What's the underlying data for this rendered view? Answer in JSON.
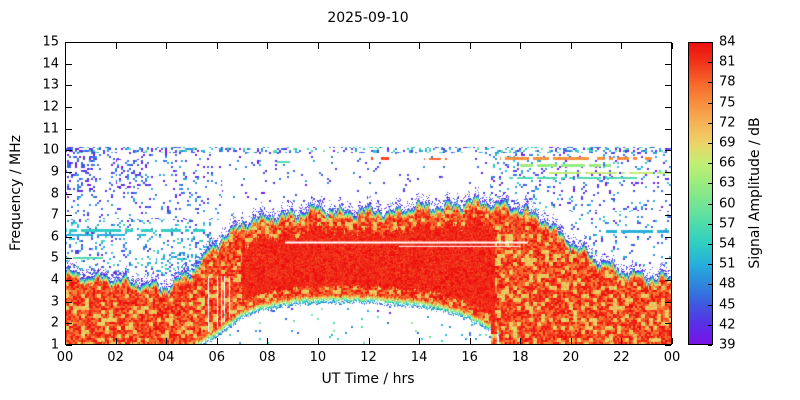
{
  "title": "2025-09-10",
  "axes": {
    "xlabel": "UT Time / hrs",
    "ylabel": "Frequency / MHz",
    "x_ticks": [
      "00",
      "02",
      "04",
      "06",
      "08",
      "10",
      "12",
      "14",
      "16",
      "18",
      "20",
      "22",
      "00"
    ],
    "y_ticks": [
      "1",
      "2",
      "3",
      "4",
      "5",
      "6",
      "7",
      "8",
      "9",
      "10",
      "11",
      "12",
      "13",
      "14",
      "15"
    ],
    "x_range": [
      0,
      24
    ],
    "y_range": [
      1,
      15
    ]
  },
  "colorbar": {
    "label": "Signal Amplitude / dB",
    "ticks": [
      39,
      42,
      45,
      48,
      51,
      54,
      57,
      60,
      63,
      66,
      69,
      72,
      75,
      78,
      81,
      84
    ],
    "min": 39,
    "max": 84
  },
  "chart_data": {
    "type": "heatmap",
    "title": "2025-09-10",
    "xlabel": "UT Time / hrs",
    "ylabel": "Frequency / MHz",
    "x_range": [
      0,
      24
    ],
    "y_range": [
      1,
      15
    ],
    "amplitude_range_db": [
      39,
      84
    ],
    "colorbar_label": "Signal Amplitude / dB",
    "colormap_stops": [
      {
        "db": 39,
        "color": "#7b12e6"
      },
      {
        "db": 42,
        "color": "#5a2fe8"
      },
      {
        "db": 45,
        "color": "#3f59e0"
      },
      {
        "db": 48,
        "color": "#2f87dd"
      },
      {
        "db": 51,
        "color": "#27b0dc"
      },
      {
        "db": 54,
        "color": "#2fcfc3"
      },
      {
        "db": 57,
        "color": "#4fdcae"
      },
      {
        "db": 60,
        "color": "#76e594"
      },
      {
        "db": 63,
        "color": "#9bec80"
      },
      {
        "db": 66,
        "color": "#c2f173"
      },
      {
        "db": 69,
        "color": "#eed468"
      },
      {
        "db": 72,
        "color": "#f6b355"
      },
      {
        "db": 75,
        "color": "#f78f3e"
      },
      {
        "db": 78,
        "color": "#f7662a"
      },
      {
        "db": 81,
        "color": "#f2341b"
      },
      {
        "db": 84,
        "color": "#ec0e0e"
      }
    ],
    "upper_edge_mhz_by_hour": [
      4.2,
      4.0,
      3.9,
      3.7,
      3.5,
      4.3,
      5.6,
      6.5,
      6.8,
      6.9,
      7.2,
      7.0,
      7.1,
      7.0,
      7.3,
      7.2,
      7.5,
      7.4,
      7.2,
      6.6,
      5.6,
      4.8,
      4.3,
      4.0,
      4.0
    ],
    "lower_edge_mhz_by_hour": [
      1,
      1,
      1,
      1,
      1,
      1,
      1.6,
      2.5,
      2.9,
      3.1,
      3.2,
      3.2,
      3.2,
      3.1,
      3.0,
      2.8,
      2.4,
      1.8,
      1.0,
      1,
      1,
      1,
      1,
      1,
      1
    ],
    "speckle_regions": [
      {
        "t0": 0.0,
        "t1": 1.2,
        "f0": 8.0,
        "f1": 10.15,
        "density": 0.22,
        "a0": 39,
        "a1": 48
      },
      {
        "t0": 2.0,
        "t1": 3.4,
        "f0": 8.2,
        "f1": 9.6,
        "density": 0.18,
        "a0": 39,
        "a1": 48
      },
      {
        "t0": 3.6,
        "t1": 5.7,
        "f0": 4.3,
        "f1": 5.3,
        "density": 0.2,
        "a0": 45,
        "a1": 57
      },
      {
        "t0": 0.0,
        "t1": 6.2,
        "f0": 4.2,
        "f1": 6.8,
        "density": 0.13,
        "a0": 42,
        "a1": 57
      },
      {
        "t0": 0.0,
        "t1": 6.2,
        "f0": 6.8,
        "f1": 10.15,
        "density": 0.09,
        "a0": 39,
        "a1": 51
      },
      {
        "t0": 16.8,
        "t1": 24,
        "f0": 7.2,
        "f1": 10.15,
        "density": 0.11,
        "a0": 39,
        "a1": 54
      },
      {
        "t0": 20.0,
        "t1": 24,
        "f0": 4.6,
        "f1": 7.2,
        "density": 0.07,
        "a0": 42,
        "a1": 54
      },
      {
        "t0": 6.2,
        "t1": 16.8,
        "f0": 7.6,
        "f1": 10.15,
        "density": 0.02,
        "a0": 39,
        "a1": 48
      },
      {
        "t0": 0.0,
        "t1": 24,
        "f0": 9.85,
        "f1": 10.15,
        "density": 0.26,
        "a0": 39,
        "a1": 60
      },
      {
        "t0": 6.3,
        "t1": 17.2,
        "f0": 1.0,
        "f1": 3.2,
        "density": 0.02,
        "a0": 45,
        "a1": 63
      },
      {
        "t0": 0.0,
        "t1": 24,
        "f0": 1.0,
        "f1": 10.15,
        "density": 0.007,
        "a0": 39,
        "a1": 51
      }
    ],
    "streaks": [
      {
        "f": 6.28,
        "t0": 0,
        "t1": 5.6,
        "amp": 54
      },
      {
        "f": 6.08,
        "t0": 0,
        "t1": 3.2,
        "amp": 51
      },
      {
        "f": 5.02,
        "t0": 0,
        "t1": 1.5,
        "amp": 57
      },
      {
        "f": 6.25,
        "t0": 21.4,
        "t1": 24,
        "amp": 51
      },
      {
        "f": 9.62,
        "t0": 17.2,
        "t1": 23.2,
        "amp": 75
      },
      {
        "f": 9.3,
        "t0": 18.0,
        "t1": 21.6,
        "amp": 63
      },
      {
        "f": 8.72,
        "t0": 17.5,
        "t1": 22.6,
        "amp": 57
      },
      {
        "f": 8.95,
        "t0": 19.0,
        "t1": 24,
        "amp": 66
      },
      {
        "f": 9.62,
        "t0": 12.1,
        "t1": 12.8,
        "amp": 80
      },
      {
        "f": 9.6,
        "t0": 14.2,
        "t1": 15.1,
        "amp": 78
      },
      {
        "f": 9.45,
        "t0": 8.3,
        "t1": 8.9,
        "amp": 57
      }
    ],
    "white_lines": [
      {
        "f": 5.78,
        "t0": 8.7,
        "t1": 18.3,
        "px": 2
      },
      {
        "f": 5.58,
        "t0": 13.2,
        "t1": 18.0,
        "px": 1
      }
    ]
  }
}
